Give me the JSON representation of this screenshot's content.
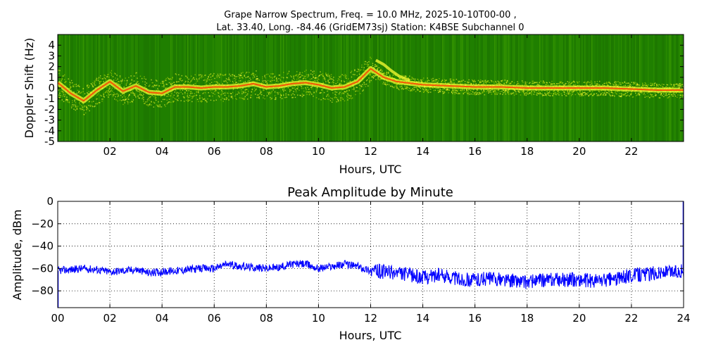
{
  "title_line1": "Grape Narrow Spectrum, Freq. = 10.0 MHz, 2025-10-10T00-00 ,",
  "title_line2": "Lat.  33.40, Long. -84.46 (GridEM73sj) Station: K4BSE Subchannel 0",
  "chart_data": [
    {
      "type": "heatmap",
      "title": "Grape Narrow Spectrum, Freq. = 10.0 MHz, 2025-10-10T00-00 , Lat.  33.40, Long. -84.46 (GridEM73sj) Station: K4BSE Subchannel 0",
      "xlabel": "Hours, UTC",
      "ylabel": "Doppler Shift (Hz)",
      "xlim": [
        0,
        24
      ],
      "ylim": [
        -5,
        5
      ],
      "xticks": [
        "02",
        "04",
        "06",
        "08",
        "10",
        "12",
        "14",
        "16",
        "18",
        "20",
        "22"
      ],
      "yticks": [
        "4",
        "3",
        "2",
        "1",
        "0",
        "-1",
        "-2",
        "-3",
        "-4",
        "-5"
      ],
      "colors": {
        "background": "#1f7f00",
        "low": "#3a9a00",
        "mid": "#ffff33",
        "high": "#ff3c00"
      },
      "doppler_trace": {
        "hours": [
          0,
          0.5,
          1.0,
          1.5,
          2.0,
          2.5,
          3.0,
          3.5,
          4.0,
          4.5,
          5.0,
          5.5,
          6.0,
          6.5,
          7.0,
          7.5,
          8.0,
          8.5,
          9.0,
          9.5,
          10.0,
          10.5,
          11.0,
          11.5,
          12.0,
          12.5,
          13.0,
          14.0,
          15.0,
          16.0,
          17.0,
          18.0,
          19.0,
          20.0,
          21.0,
          22.0,
          23.0,
          24.0
        ],
        "doppler": [
          0.5,
          -0.5,
          -1.2,
          -0.2,
          0.6,
          -0.3,
          0.2,
          -0.4,
          -0.5,
          0.1,
          0.1,
          0.0,
          0.1,
          0.1,
          0.2,
          0.4,
          0.1,
          0.2,
          0.4,
          0.5,
          0.3,
          0.0,
          0.1,
          0.6,
          1.8,
          1.0,
          0.6,
          0.3,
          0.2,
          0.1,
          0.1,
          0.0,
          0.0,
          0.0,
          0.0,
          -0.1,
          -0.2,
          -0.2
        ]
      },
      "secondary_trace": {
        "hours": [
          12.2,
          12.5,
          12.8,
          13.1,
          13.5
        ],
        "doppler": [
          2.6,
          2.2,
          1.6,
          1.1,
          0.7
        ]
      }
    },
    {
      "type": "line",
      "title": "Peak Amplitude by Minute",
      "xlabel": "Hours, UTC",
      "ylabel": "Amplitude, dBm",
      "xlim": [
        0,
        24
      ],
      "ylim": [
        -95,
        0
      ],
      "xticks": [
        "00",
        "02",
        "04",
        "06",
        "08",
        "10",
        "12",
        "14",
        "16",
        "18",
        "20",
        "22",
        "24"
      ],
      "yticks": [
        "0",
        "−20",
        "−40",
        "−60",
        "−80"
      ],
      "grid": true,
      "line_color": "#0000ff",
      "x": [
        0,
        0.5,
        1,
        1.5,
        2,
        2.5,
        3,
        3.5,
        4,
        4.5,
        5,
        5.5,
        6,
        6.5,
        7,
        7.5,
        8,
        8.5,
        9,
        9.5,
        10,
        10.5,
        11,
        11.5,
        12,
        12.5,
        13,
        13.5,
        14,
        14.5,
        15,
        15.5,
        16,
        16.5,
        17,
        17.5,
        18,
        18.5,
        19,
        19.5,
        20,
        20.5,
        21,
        21.5,
        22,
        22.5,
        23,
        23.5,
        24
      ],
      "y": [
        -62,
        -61,
        -60,
        -61,
        -63,
        -62,
        -61,
        -64,
        -63,
        -62,
        -61,
        -60,
        -60,
        -56,
        -58,
        -59,
        -60,
        -59,
        -56,
        -56,
        -60,
        -58,
        -56,
        -58,
        -62,
        -63,
        -64,
        -66,
        -68,
        -66,
        -67,
        -70,
        -70,
        -69,
        -70,
        -71,
        -72,
        -71,
        -70,
        -70,
        -70,
        -71,
        -70,
        -69,
        -66,
        -65,
        -64,
        -63,
        -62
      ]
    }
  ]
}
